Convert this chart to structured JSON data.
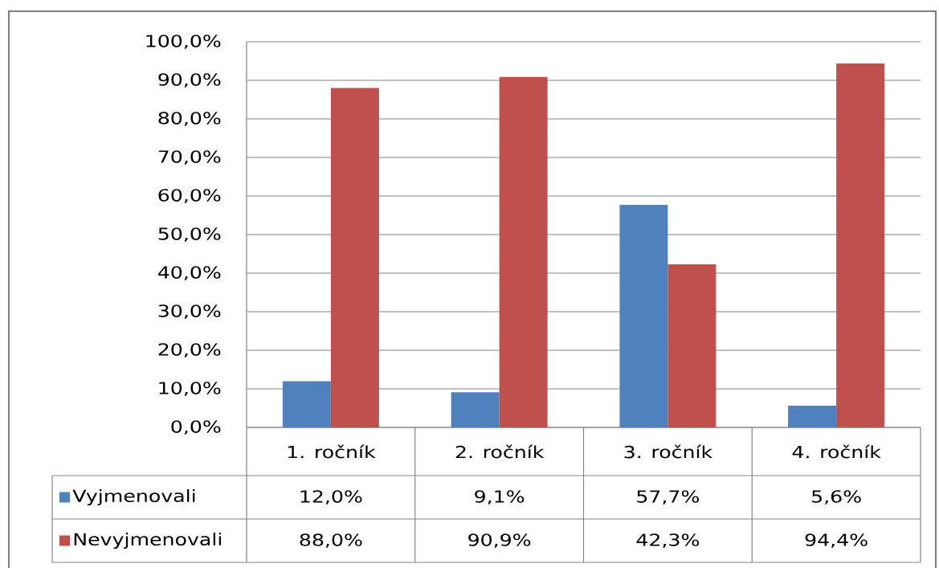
{
  "chart_data": {
    "type": "bar",
    "categories": [
      "1. ročník",
      "2. ročník",
      "3. ročník",
      "4. ročník"
    ],
    "series": [
      {
        "name": "Vyjmenovali",
        "color": "#4f81bd",
        "values": [
          12.0,
          9.1,
          57.7,
          5.6
        ],
        "value_labels": [
          "12,0%",
          "9,1%",
          "57,7%",
          "5,6%"
        ]
      },
      {
        "name": "Nevyjmenovali",
        "color": "#c0504d",
        "values": [
          88.0,
          90.9,
          42.3,
          94.4
        ],
        "value_labels": [
          "88,0%",
          "90,9%",
          "42,3%",
          "94,4%"
        ]
      }
    ],
    "ylim": [
      0,
      100
    ],
    "yticks": [
      {
        "value": 0,
        "label": "0,0%"
      },
      {
        "value": 10,
        "label": "10,0%"
      },
      {
        "value": 20,
        "label": "20,0%"
      },
      {
        "value": 30,
        "label": "30,0%"
      },
      {
        "value": 40,
        "label": "40,0%"
      },
      {
        "value": 50,
        "label": "50,0%"
      },
      {
        "value": 60,
        "label": "60,0%"
      },
      {
        "value": 70,
        "label": "70,0%"
      },
      {
        "value": 80,
        "label": "80,0%"
      },
      {
        "value": 90,
        "label": "90,0%"
      },
      {
        "value": 100,
        "label": "100,0%"
      }
    ],
    "grid": "y",
    "legend": "bottom"
  }
}
